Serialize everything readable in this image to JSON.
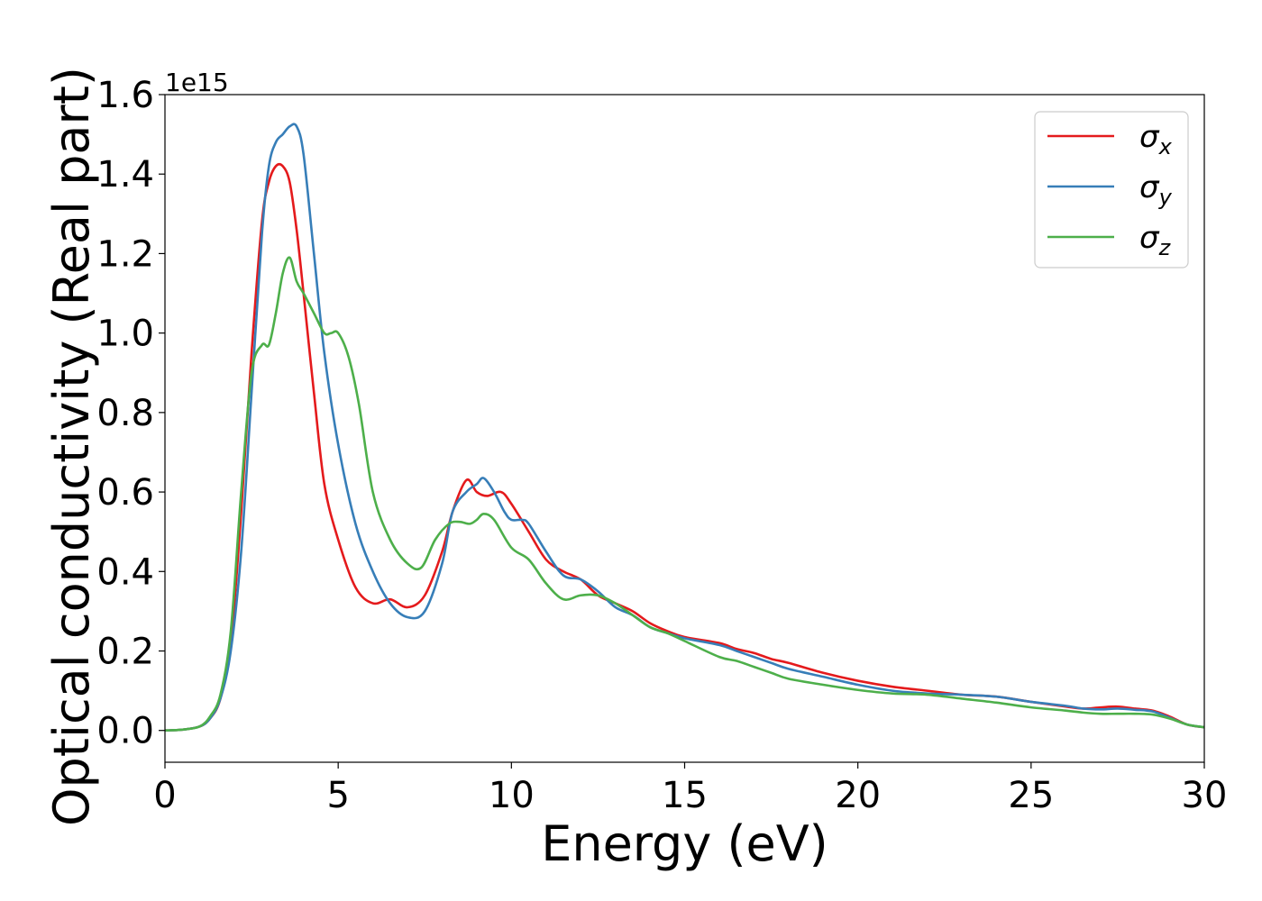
{
  "chart_data": {
    "type": "line",
    "xlabel": "Energy (eV)",
    "ylabel": "Optical conductivity (Real part)",
    "y_offset_text": "1e15",
    "xlim": [
      0,
      30
    ],
    "ylim": [
      -0.08,
      1.6
    ],
    "xticks": [
      0,
      5,
      10,
      15,
      20,
      25,
      30
    ],
    "yticks": [
      0.0,
      0.2,
      0.4,
      0.6,
      0.8,
      1.0,
      1.2,
      1.4,
      1.6
    ],
    "xtick_labels": [
      "0",
      "5",
      "10",
      "15",
      "20",
      "25",
      "30"
    ],
    "ytick_labels": [
      "0.0",
      "0.2",
      "0.4",
      "0.6",
      "0.8",
      "1.0",
      "1.2",
      "1.4",
      "1.6"
    ],
    "grid": false,
    "legend_position": "top-right",
    "series": [
      {
        "name": "σx",
        "symbol": "σ",
        "subscript": "x",
        "color": "#e41a1c",
        "x": [
          0,
          0.5,
          1,
          1.3,
          1.6,
          1.9,
          2.2,
          2.5,
          2.8,
          3.0,
          3.2,
          3.4,
          3.6,
          3.8,
          4.0,
          4.3,
          4.6,
          5.0,
          5.5,
          6.0,
          6.5,
          7.0,
          7.5,
          8.0,
          8.3,
          8.7,
          9.0,
          9.3,
          9.7,
          10.0,
          10.5,
          11.0,
          11.5,
          12.0,
          12.5,
          13.0,
          13.5,
          14.0,
          14.5,
          15.0,
          16.0,
          16.5,
          17.0,
          17.5,
          18.0,
          19.0,
          20.0,
          21.0,
          22.0,
          23.0,
          24.0,
          25.0,
          26.0,
          26.5,
          27.0,
          27.5,
          28.0,
          28.5,
          29.0,
          29.5,
          30.0
        ],
        "y": [
          0.0,
          0.002,
          0.01,
          0.03,
          0.08,
          0.22,
          0.55,
          0.95,
          1.28,
          1.38,
          1.42,
          1.42,
          1.38,
          1.26,
          1.1,
          0.85,
          0.62,
          0.48,
          0.36,
          0.32,
          0.33,
          0.31,
          0.34,
          0.45,
          0.55,
          0.63,
          0.6,
          0.59,
          0.6,
          0.57,
          0.5,
          0.43,
          0.4,
          0.38,
          0.34,
          0.32,
          0.3,
          0.27,
          0.25,
          0.235,
          0.22,
          0.205,
          0.195,
          0.18,
          0.17,
          0.145,
          0.125,
          0.11,
          0.1,
          0.09,
          0.085,
          0.072,
          0.06,
          0.055,
          0.058,
          0.06,
          0.055,
          0.05,
          0.035,
          0.015,
          0.008
        ]
      },
      {
        "name": "σy",
        "symbol": "σ",
        "subscript": "y",
        "color": "#377eb8",
        "x": [
          0,
          0.5,
          1,
          1.3,
          1.6,
          1.9,
          2.2,
          2.5,
          2.8,
          3.0,
          3.2,
          3.4,
          3.6,
          3.8,
          4.0,
          4.3,
          4.6,
          5.0,
          5.5,
          6.0,
          6.5,
          7.0,
          7.5,
          8.0,
          8.3,
          8.7,
          9.0,
          9.2,
          9.5,
          9.8,
          10.0,
          10.3,
          10.5,
          11.0,
          11.5,
          12.0,
          12.5,
          13.0,
          13.5,
          14.0,
          14.5,
          15.0,
          16.0,
          16.5,
          17.0,
          17.5,
          18.0,
          19.0,
          20.0,
          21.0,
          22.0,
          23.0,
          24.0,
          25.0,
          26.0,
          26.5,
          27.0,
          27.5,
          28.0,
          28.5,
          29.0,
          29.5,
          30.0
        ],
        "y": [
          0.0,
          0.002,
          0.01,
          0.03,
          0.08,
          0.2,
          0.45,
          0.85,
          1.25,
          1.42,
          1.48,
          1.5,
          1.52,
          1.52,
          1.45,
          1.2,
          0.95,
          0.72,
          0.52,
          0.4,
          0.32,
          0.285,
          0.3,
          0.42,
          0.55,
          0.6,
          0.62,
          0.635,
          0.6,
          0.55,
          0.53,
          0.53,
          0.52,
          0.45,
          0.39,
          0.38,
          0.35,
          0.31,
          0.29,
          0.26,
          0.245,
          0.232,
          0.215,
          0.2,
          0.185,
          0.17,
          0.155,
          0.135,
          0.115,
          0.1,
          0.093,
          0.09,
          0.085,
          0.072,
          0.062,
          0.055,
          0.053,
          0.055,
          0.052,
          0.048,
          0.032,
          0.015,
          0.008
        ]
      },
      {
        "name": "σz",
        "symbol": "σ",
        "subscript": "z",
        "color": "#4daf4a",
        "x": [
          0,
          0.5,
          1,
          1.3,
          1.6,
          1.9,
          2.2,
          2.5,
          2.8,
          3.0,
          3.2,
          3.4,
          3.6,
          3.8,
          4.0,
          4.3,
          4.6,
          4.8,
          5.0,
          5.3,
          5.6,
          6.0,
          6.5,
          7.0,
          7.4,
          7.8,
          8.2,
          8.5,
          8.8,
          9.0,
          9.2,
          9.5,
          10.0,
          10.5,
          11.0,
          11.5,
          12.0,
          12.5,
          13.0,
          13.5,
          14.0,
          14.5,
          15.0,
          16.0,
          16.5,
          17.0,
          17.5,
          18.0,
          19.0,
          20.0,
          21.0,
          22.0,
          23.0,
          24.0,
          25.0,
          26.0,
          26.5,
          27.0,
          27.5,
          28.0,
          28.5,
          29.0,
          29.5,
          30.0
        ],
        "y": [
          0.0,
          0.002,
          0.01,
          0.035,
          0.09,
          0.25,
          0.6,
          0.9,
          0.97,
          0.97,
          1.05,
          1.15,
          1.19,
          1.13,
          1.1,
          1.05,
          1.0,
          1.0,
          1.0,
          0.94,
          0.82,
          0.6,
          0.48,
          0.42,
          0.41,
          0.48,
          0.52,
          0.525,
          0.52,
          0.53,
          0.545,
          0.53,
          0.46,
          0.43,
          0.37,
          0.33,
          0.34,
          0.34,
          0.32,
          0.29,
          0.26,
          0.245,
          0.225,
          0.185,
          0.175,
          0.16,
          0.145,
          0.13,
          0.115,
          0.102,
          0.093,
          0.09,
          0.08,
          0.07,
          0.058,
          0.05,
          0.045,
          0.042,
          0.042,
          0.042,
          0.04,
          0.03,
          0.015,
          0.008
        ]
      }
    ]
  }
}
